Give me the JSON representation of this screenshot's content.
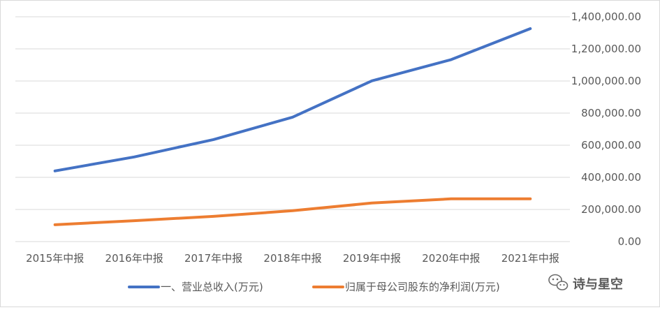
{
  "chart_data": {
    "type": "line",
    "categories": [
      "2015年中报",
      "2016年中报",
      "2017年中报",
      "2018年中报",
      "2019年中报",
      "2020年中报",
      "2021年中报"
    ],
    "series": [
      {
        "name": "一、营业总收入(万元)",
        "color": "#4472c4",
        "values": [
          440000,
          527000,
          635000,
          775000,
          1001000,
          1133000,
          1326000
        ]
      },
      {
        "name": "归属于母公司股东的净利润(万元)",
        "color": "#ed7d31",
        "values": [
          105000,
          130000,
          157000,
          192000,
          240000,
          266000,
          266000
        ]
      }
    ],
    "ylim": [
      0,
      1400000
    ],
    "yticks": [
      0,
      200000,
      400000,
      600000,
      800000,
      1000000,
      1200000,
      1400000
    ],
    "ytick_labels": [
      "0.00",
      "200,000.00",
      "400,000.00",
      "600,000.00",
      "800,000.00",
      "1,000,000.00",
      "1,200,000.00",
      "1,400,000.00"
    ],
    "y_axis_side": "right",
    "grid": true,
    "legend_position": "bottom",
    "gridline_color": "#d9d9d9"
  },
  "watermark": {
    "text": "诗与星空",
    "icon": "wechat-icon"
  }
}
